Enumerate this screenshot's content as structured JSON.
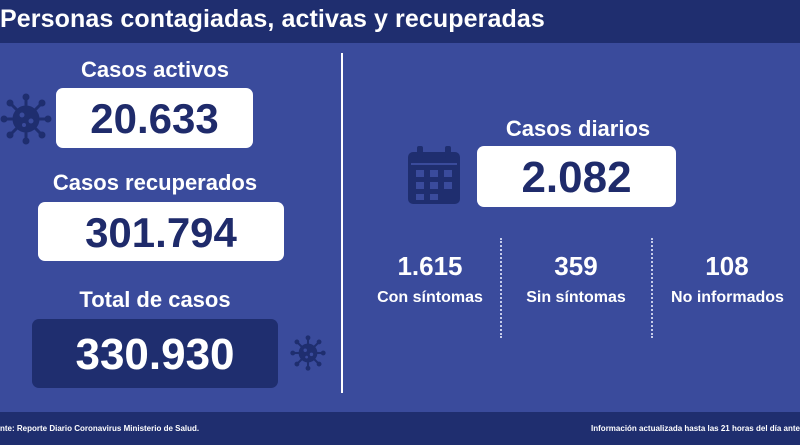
{
  "header": {
    "title": "Personas contagiadas, activas y recuperadas"
  },
  "left": {
    "activos": {
      "label": "Casos activos",
      "value": "20.633"
    },
    "recuperados": {
      "label": "Casos recuperados",
      "value": "301.794"
    },
    "total": {
      "label": "Total de casos",
      "value": "330.930"
    }
  },
  "right": {
    "diarios": {
      "label": "Casos diarios",
      "value": "2.082"
    },
    "breakdown": [
      {
        "value": "1.615",
        "label": "Con síntomas"
      },
      {
        "value": "359",
        "label": "Sin síntomas"
      },
      {
        "value": "108",
        "label": "No informados"
      }
    ]
  },
  "footer": {
    "source": "nte: Reporte Diario Coronavirus Ministerio de Salud.",
    "updated": "Información actualizada hasta las 21 horas  del día ante"
  },
  "colors": {
    "background": "#3a4b9c",
    "bar": "#1f2e6f",
    "box": "#ffffff",
    "number_text": "#1f2b6b",
    "icon": "#1f2e6f"
  },
  "icons": [
    "virus-icon",
    "calendar-icon"
  ]
}
